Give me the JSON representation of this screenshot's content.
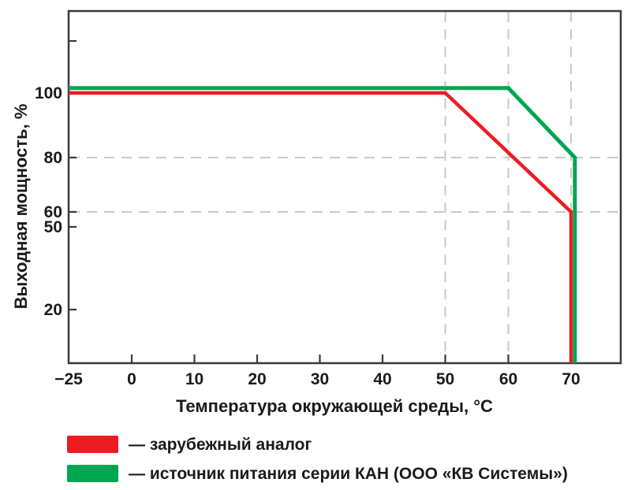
{
  "figure": {
    "background": "#ffffff",
    "axis_color": "#3a3a3a",
    "grid_color": "#c9c9c9",
    "text_color": "#1a1a1a"
  },
  "chart_data": {
    "type": "line",
    "title": "",
    "xlabel": "Температура окружающей среды, °C",
    "ylabel": "Выходная мощность, %",
    "x_ticks": [
      -25,
      0,
      10,
      20,
      30,
      40,
      50,
      60,
      70
    ],
    "x_tick_labels": [
      "−25",
      "0",
      "10",
      "20",
      "30",
      "40",
      "50",
      "60",
      "70"
    ],
    "y_ticks": [
      100,
      80,
      60,
      50,
      20
    ],
    "y_tick_labels": [
      "100",
      "80",
      "60",
      "50",
      "20"
    ],
    "xlim": [
      -25,
      78
    ],
    "ylim": [
      0,
      125
    ],
    "grid": {
      "h_dashed_at": [
        80,
        60
      ],
      "v_dashed_at": [
        50,
        60,
        70
      ]
    },
    "legend_position": "below-left",
    "series": [
      {
        "name": "зарубежный аналог",
        "color": "#ED1C24",
        "points": [
          [
            -25,
            100
          ],
          [
            50,
            100
          ],
          [
            70,
            60
          ],
          [
            70,
            0
          ]
        ]
      },
      {
        "name": "источник питания серии КАН (ООО «КВ Системы»)",
        "color": "#00A651",
        "points": [
          [
            -25,
            100
          ],
          [
            60,
            100
          ],
          [
            71,
            80
          ],
          [
            71,
            0
          ]
        ]
      }
    ]
  },
  "legend": {
    "items": [
      {
        "color": "#ED1C24",
        "label": "— зарубежный аналог"
      },
      {
        "color": "#00A651",
        "label": "— источник питания серии КАН (ООО «КВ Системы»)"
      }
    ]
  }
}
